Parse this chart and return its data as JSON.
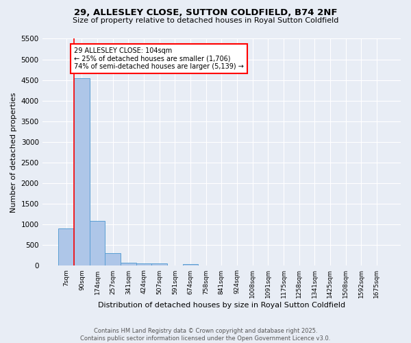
{
  "title": "29, ALLESLEY CLOSE, SUTTON COLDFIELD, B74 2NF",
  "subtitle": "Size of property relative to detached houses in Royal Sutton Coldfield",
  "xlabel": "Distribution of detached houses by size in Royal Sutton Coldfield",
  "ylabel": "Number of detached properties",
  "bar_values": [
    900,
    4550,
    1090,
    300,
    80,
    65,
    50,
    0,
    40,
    0,
    0,
    0,
    0,
    0,
    0,
    0,
    0,
    0,
    0,
    0,
    0
  ],
  "bin_labels": [
    "7sqm",
    "90sqm",
    "174sqm",
    "257sqm",
    "341sqm",
    "424sqm",
    "507sqm",
    "591sqm",
    "674sqm",
    "758sqm",
    "841sqm",
    "924sqm",
    "1008sqm",
    "1091sqm",
    "1175sqm",
    "1258sqm",
    "1341sqm",
    "1425sqm",
    "1508sqm",
    "1592sqm",
    "1675sqm"
  ],
  "bar_color": "#aec6e8",
  "bar_edge_color": "#5a9fd4",
  "ref_line_x": 1.0,
  "ref_line_color": "red",
  "annotation_text": "29 ALLESLEY CLOSE: 104sqm\n← 25% of detached houses are smaller (1,706)\n74% of semi-detached houses are larger (5,139) →",
  "annotation_box_color": "white",
  "annotation_box_edge_color": "red",
  "ylim": [
    0,
    5500
  ],
  "yticks": [
    0,
    500,
    1000,
    1500,
    2000,
    2500,
    3000,
    3500,
    4000,
    4500,
    5000,
    5500
  ],
  "footer_line1": "Contains HM Land Registry data © Crown copyright and database right 2025.",
  "footer_line2": "Contains public sector information licensed under the Open Government Licence v3.0.",
  "bg_color": "#e8edf5",
  "grid_color": "white"
}
